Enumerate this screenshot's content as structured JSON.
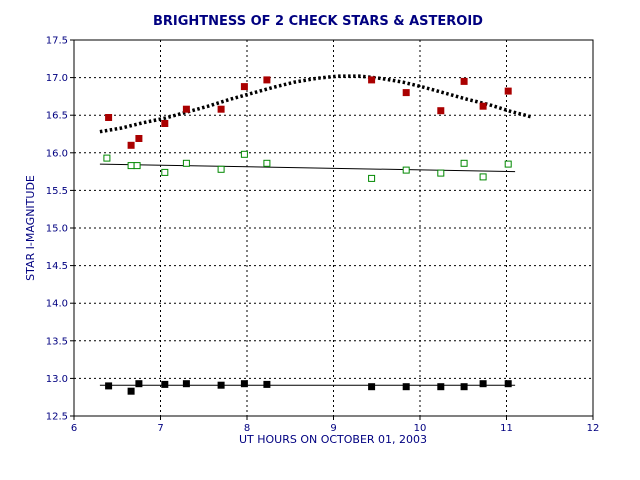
{
  "chart_data": {
    "type": "scatter",
    "title": "BRIGHTNESS OF 2 CHECK STARS & ASTEROID",
    "xlabel": "UT HOURS ON OCTOBER 01, 2003",
    "ylabel": "STAR I-MAGNITUDE",
    "xlim": [
      6,
      12
    ],
    "ylim": [
      12.5,
      17.5
    ],
    "x_ticks": [
      "6",
      "7",
      "8",
      "9",
      "10",
      "11",
      "12"
    ],
    "y_ticks": [
      "12.5",
      "13.0",
      "13.5",
      "14.0",
      "14.5",
      "15.0",
      "15.5",
      "16.0",
      "16.5",
      "17.0",
      "17.5"
    ],
    "grid": true,
    "series": [
      {
        "marker": "filled-square",
        "color": "#aa0000",
        "x": [
          6.4,
          6.66,
          6.75,
          7.05,
          7.3,
          7.7,
          7.97,
          8.23,
          9.44,
          9.84,
          10.24,
          10.51,
          10.73,
          11.02
        ],
        "y": [
          16.47,
          16.1,
          16.19,
          16.39,
          16.58,
          16.58,
          16.88,
          16.97,
          16.97,
          16.8,
          16.56,
          16.95,
          16.62,
          16.82
        ]
      },
      {
        "marker": "open-square",
        "color": "#008800",
        "x": [
          6.38,
          6.66,
          6.73,
          7.05,
          7.3,
          7.7,
          7.97,
          8.23,
          9.44,
          9.84,
          10.24,
          10.51,
          10.73,
          11.02
        ],
        "y": [
          15.93,
          15.83,
          15.83,
          15.74,
          15.86,
          15.78,
          15.98,
          15.86,
          15.66,
          15.77,
          15.73,
          15.86,
          15.68,
          15.85
        ]
      },
      {
        "marker": "filled-square",
        "color": "#000000",
        "x": [
          6.4,
          6.66,
          6.75,
          7.05,
          7.3,
          7.7,
          7.97,
          8.23,
          9.44,
          9.84,
          10.24,
          10.51,
          10.73,
          11.02
        ],
        "y": [
          12.9,
          12.83,
          12.93,
          12.92,
          12.93,
          12.91,
          12.93,
          12.92,
          12.89,
          12.89,
          12.89,
          12.89,
          12.93,
          12.93
        ]
      }
    ],
    "fit_lines": [
      {
        "style": "dotted-thick",
        "color": "#000000",
        "x": [
          6.3,
          6.55,
          6.8,
          7.05,
          7.3,
          7.55,
          7.8,
          8.05,
          8.3,
          8.55,
          8.8,
          9.05,
          9.3,
          9.55,
          9.8,
          10.05,
          10.3,
          10.55,
          10.8,
          11.05,
          11.28
        ],
        "y": [
          16.28,
          16.33,
          16.4,
          16.46,
          16.54,
          16.62,
          16.71,
          16.79,
          16.87,
          16.94,
          16.99,
          17.02,
          17.02,
          16.99,
          16.94,
          16.87,
          16.79,
          16.71,
          16.64,
          16.55,
          16.48
        ]
      },
      {
        "style": "solid",
        "color": "#000000",
        "x": [
          6.3,
          11.1
        ],
        "y": [
          15.85,
          15.75
        ]
      },
      {
        "style": "solid",
        "color": "#000000",
        "x": [
          6.3,
          11.1
        ],
        "y": [
          12.91,
          12.91
        ]
      }
    ]
  }
}
